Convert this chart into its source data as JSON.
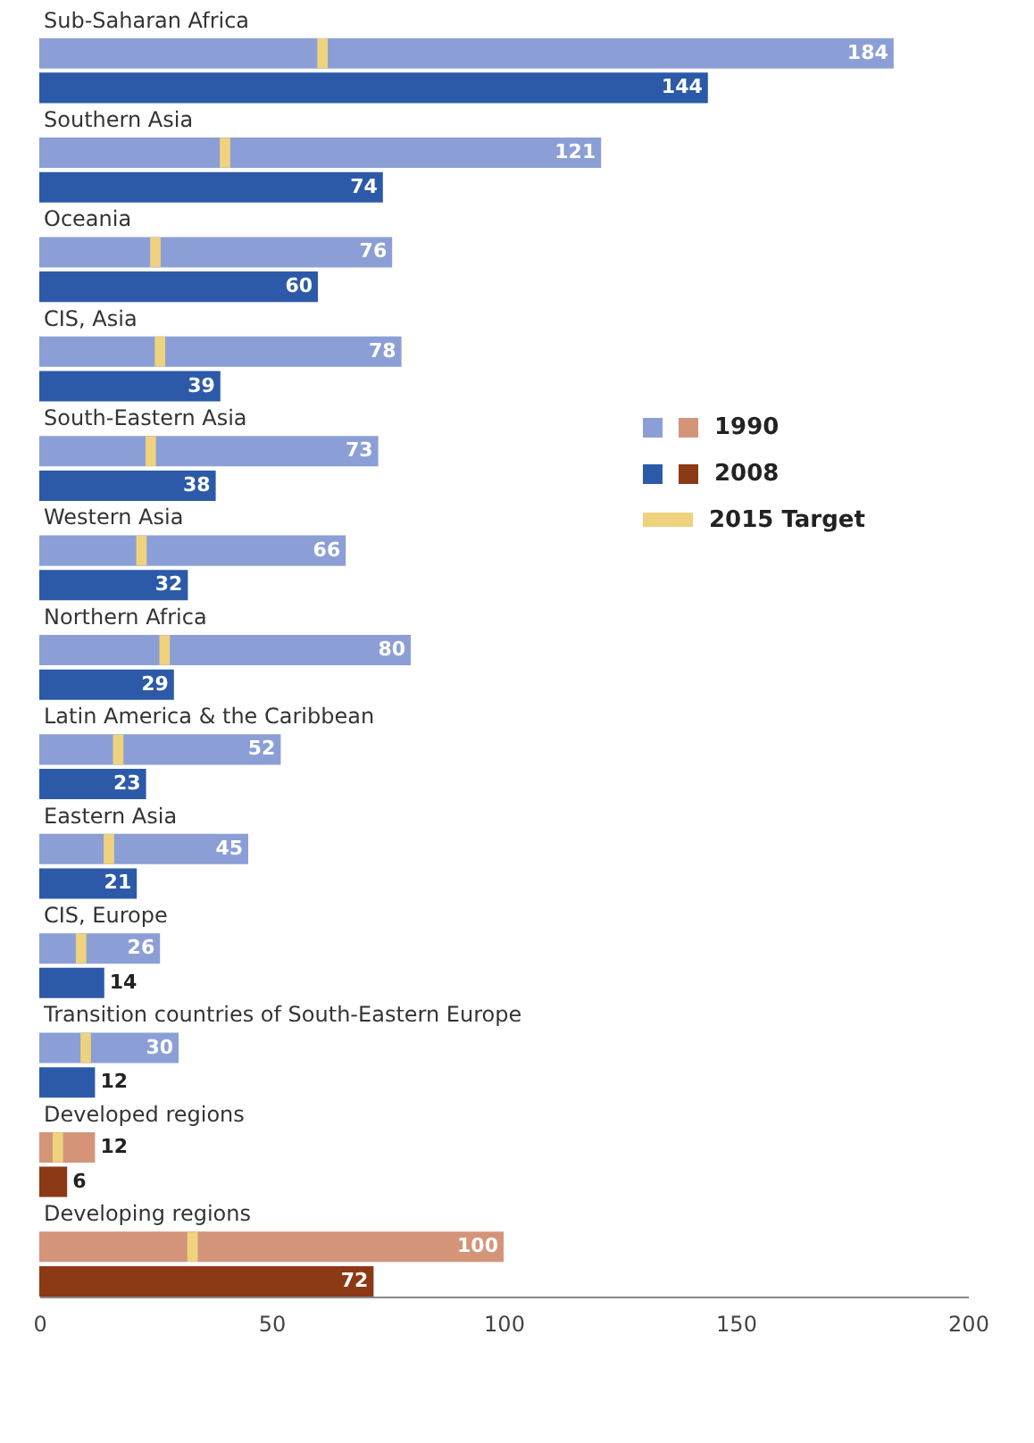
{
  "chart_data": {
    "type": "bar",
    "orientation": "horizontal",
    "categories": [
      "Sub-Saharan Africa",
      "Southern Asia",
      "Oceania",
      "CIS, Asia",
      "South-Eastern Asia",
      "Western Asia",
      "Northern Africa",
      "Latin America & the Caribbean",
      "Eastern Asia",
      "CIS, Europe",
      "Transition countries of South-Eastern Europe",
      "Developed regions",
      "Developing regions"
    ],
    "series": [
      {
        "name": "1990",
        "color": "#8b9fd6",
        "colors": [
          "#8b9fd6",
          "#8b9fd6",
          "#8b9fd6",
          "#8b9fd6",
          "#8b9fd6",
          "#8b9fd6",
          "#8b9fd6",
          "#8b9fd6",
          "#8b9fd6",
          "#8b9fd6",
          "#8b9fd6",
          "#d49479",
          "#d49479"
        ],
        "values": [
          184,
          121,
          76,
          78,
          73,
          66,
          80,
          52,
          45,
          26,
          30,
          12,
          100
        ],
        "value_labels": [
          "184",
          "121",
          "76",
          "78",
          "73",
          "66",
          "80",
          "52",
          "45",
          "26",
          "30",
          "12",
          "100"
        ]
      },
      {
        "name": "2008",
        "color": "#2c5aa8",
        "colors": [
          "#2c5aa8",
          "#2c5aa8",
          "#2c5aa8",
          "#2c5aa8",
          "#2c5aa8",
          "#2c5aa8",
          "#2c5aa8",
          "#2c5aa8",
          "#2c5aa8",
          "#2c5aa8",
          "#2c5aa8",
          "#8c3a15",
          "#8c3a15"
        ],
        "values": [
          144,
          74,
          60,
          39,
          38,
          32,
          29,
          23,
          21,
          14,
          12,
          6,
          72
        ],
        "value_labels": [
          "144",
          "74",
          "60",
          "39",
          "38",
          "32",
          "29",
          "23",
          "21",
          "14",
          "12",
          "6",
          "72"
        ]
      },
      {
        "name": "2015 Target",
        "type": "scatter",
        "color": "#efd27e",
        "values": [
          61,
          40,
          25,
          26,
          24,
          22,
          27,
          17,
          15,
          9,
          10,
          4,
          33
        ]
      }
    ],
    "xlim": [
      0,
      200
    ],
    "xticks": [
      0,
      50,
      100,
      150,
      200
    ],
    "grid": false,
    "legend": "right"
  }
}
